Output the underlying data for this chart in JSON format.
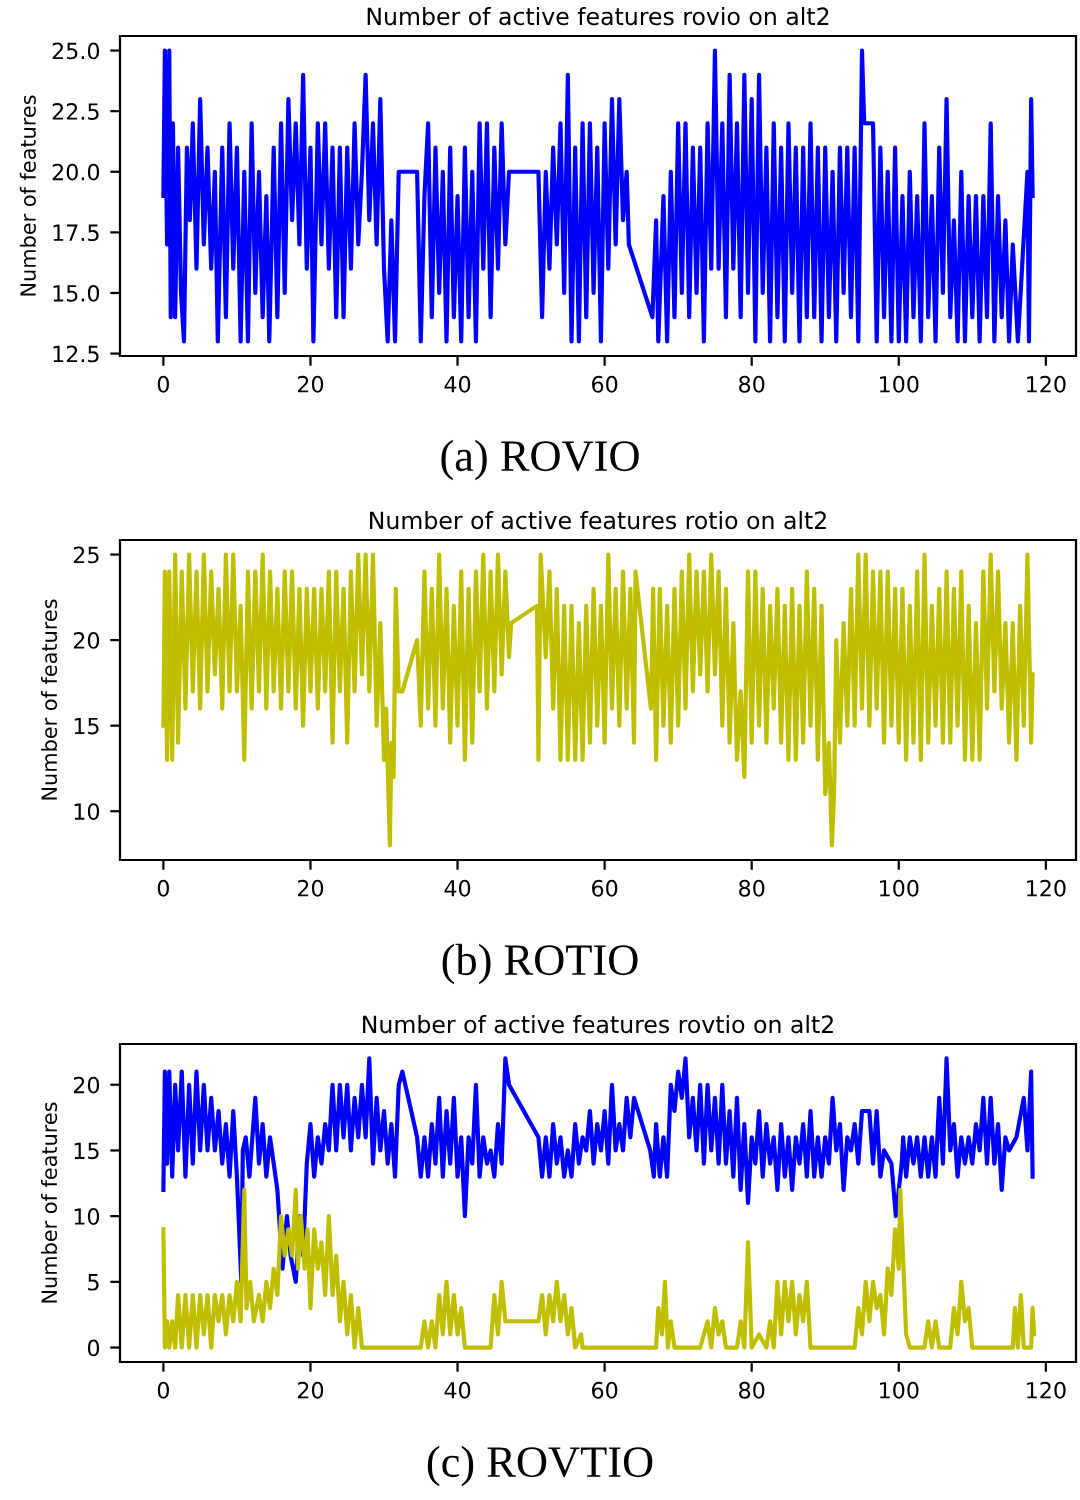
{
  "chart_data": [
    {
      "type": "line",
      "title": "Number of active features rovio on alt2",
      "ylabel": "Number of features",
      "annotations": [
        "(a) ROVIO"
      ],
      "xlim": [
        -5.9,
        124.1
      ],
      "xticks": [
        0,
        20,
        40,
        60,
        80,
        100,
        120
      ],
      "ylim": [
        12.4,
        25.6
      ],
      "yticks": [
        {
          "value": 12.5,
          "label": "12.5"
        },
        {
          "value": 15,
          "label": "15.0"
        },
        {
          "value": 17.5,
          "label": "17.5"
        },
        {
          "value": 20,
          "label": "20.0"
        },
        {
          "value": 22.5,
          "label": "22.5"
        },
        {
          "value": 25,
          "label": "25.0"
        }
      ],
      "grid": false,
      "series": [
        {
          "color": "#0000ff",
          "x": [
            0,
            0.2,
            0.5,
            0.8,
            1,
            1.3,
            1.6,
            2,
            2.4,
            2.8,
            3.2,
            3.6,
            4,
            4.5,
            5,
            5.5,
            6,
            6.5,
            7,
            7.4,
            8,
            8.5,
            9,
            9.5,
            10,
            10.5,
            11,
            11.5,
            12,
            12.5,
            13,
            13.5,
            14,
            14.4,
            15,
            15.5,
            16,
            16.5,
            17,
            17.5,
            18,
            18.5,
            19,
            19.5,
            20,
            20.4,
            21,
            21.5,
            22,
            22.5,
            23,
            23.5,
            24,
            24.5,
            25,
            25.5,
            26,
            26.5,
            27,
            27.5,
            28,
            28.5,
            29,
            29.5,
            30,
            30.5,
            31,
            31.5,
            32,
            34.5,
            35,
            35.5,
            36,
            36.5,
            37,
            37.5,
            38,
            38.5,
            39,
            39.5,
            40,
            40.5,
            41,
            41.5,
            42,
            42.5,
            43,
            43.5,
            44,
            44.5,
            45,
            45.5,
            46,
            46.5,
            47,
            51,
            51.5,
            52,
            52.5,
            53,
            53.5,
            54,
            54.5,
            55,
            55.5,
            56,
            56.5,
            57,
            57.5,
            58,
            58.5,
            59,
            59.5,
            60,
            60.5,
            61,
            61.5,
            62,
            62.5,
            63,
            63.3,
            66.5,
            67,
            67.3,
            68,
            68.5,
            69,
            69.5,
            70,
            70.5,
            71,
            71.5,
            72,
            72.5,
            73,
            73.5,
            74,
            74.5,
            75,
            75.5,
            76,
            76.5,
            77,
            77.5,
            78,
            78.5,
            79,
            79.5,
            80,
            80.5,
            81,
            81.5,
            82,
            82.5,
            83,
            83.5,
            84,
            84.5,
            85,
            85.5,
            86,
            86.5,
            87,
            87.5,
            88,
            88.5,
            89,
            89.5,
            90,
            90.5,
            91,
            91.5,
            92,
            92.5,
            93,
            93.5,
            94,
            94.5,
            95,
            95.3,
            96.5,
            97,
            97.5,
            98,
            98.5,
            99,
            99.5,
            100,
            100.5,
            101,
            101.5,
            102,
            102.5,
            103,
            103.5,
            104,
            104.5,
            105,
            105.5,
            106,
            106.5,
            107,
            107.5,
            108,
            108.5,
            109,
            109.5,
            110,
            110.5,
            111,
            111.5,
            112,
            112.5,
            113,
            113.5,
            114,
            114.5,
            115,
            115.5,
            116.2,
            117.5,
            117.7,
            118,
            118.2
          ],
          "values": [
            19,
            25,
            17,
            25,
            14,
            22,
            14,
            21,
            15,
            13,
            21,
            18,
            22,
            16,
            23,
            17,
            21,
            16,
            20,
            13,
            21,
            14,
            22,
            16,
            21,
            13,
            20,
            13,
            22,
            15,
            20,
            14,
            19,
            13,
            21,
            14,
            22,
            15,
            23,
            18,
            22,
            17,
            24,
            16,
            21,
            13,
            22,
            17,
            22,
            16,
            21,
            14,
            21,
            14,
            21,
            16,
            22,
            17,
            20,
            24,
            18,
            22,
            17,
            23,
            16,
            13,
            18,
            13,
            20,
            20,
            13,
            19,
            22,
            14,
            21,
            15,
            20,
            13,
            21,
            14,
            19,
            13,
            21,
            14,
            20,
            13,
            22,
            16,
            22,
            14,
            21,
            16,
            22,
            17,
            20,
            20,
            14,
            20,
            16,
            21,
            17,
            22,
            15,
            24,
            13,
            21,
            13,
            22,
            14,
            22,
            15,
            21,
            13,
            22,
            16,
            23,
            17,
            23,
            18,
            20,
            17,
            14,
            18,
            13,
            19,
            13,
            20,
            14,
            22,
            15,
            22,
            14,
            21,
            15,
            21,
            13,
            22,
            16,
            25,
            16,
            22,
            14,
            24,
            16,
            22,
            14,
            24,
            15,
            23,
            13,
            24,
            15,
            21,
            13,
            22,
            14,
            21,
            13,
            22,
            15,
            21,
            13,
            21,
            14,
            22,
            14,
            21,
            13,
            21,
            14,
            20,
            13,
            21,
            15,
            21,
            14,
            21,
            13,
            25,
            22,
            22,
            13,
            21,
            14,
            20,
            13,
            21,
            13,
            19,
            13,
            20,
            14,
            19,
            13,
            22,
            14,
            19,
            13,
            21,
            15,
            23,
            14,
            18,
            13,
            20,
            13,
            19,
            14,
            19,
            13,
            19,
            14,
            22,
            13,
            19,
            14,
            18,
            13,
            17,
            13,
            20,
            13,
            23,
            19
          ]
        }
      ]
    },
    {
      "type": "line",
      "title": "Number of active features rotio on alt2",
      "ylabel": "Number of features",
      "annotations": [
        "(b) ROTIO"
      ],
      "xlim": [
        -5.9,
        124.1
      ],
      "xticks": [
        0,
        20,
        40,
        60,
        80,
        100,
        120
      ],
      "ylim": [
        7.15,
        25.85
      ],
      "yticks": [
        10,
        15,
        20,
        25
      ],
      "grid": false,
      "series": [
        {
          "color": "#bfbf00",
          "x": [
            0,
            0.2,
            0.5,
            0.8,
            1.2,
            1.6,
            2,
            2.5,
            3,
            3.5,
            4,
            4.5,
            5,
            5.5,
            6,
            6.5,
            7,
            7.5,
            8,
            8.5,
            9,
            9.5,
            10,
            10.5,
            11,
            11.5,
            12,
            12.5,
            13,
            13.5,
            14,
            14.5,
            15,
            15.5,
            16,
            16.5,
            17,
            17.5,
            18,
            18.5,
            19,
            19.5,
            20,
            20.5,
            21,
            21.5,
            22,
            22.5,
            23,
            23.5,
            24,
            24.5,
            25,
            25.5,
            26,
            26.5,
            27,
            27.5,
            28,
            28.5,
            29,
            29.5,
            30,
            30.3,
            30.6,
            30.8,
            31,
            31.3,
            31.6,
            32,
            32.5,
            34.5,
            35,
            35.5,
            36,
            36.5,
            37,
            37.5,
            38,
            38.5,
            39,
            39.5,
            40,
            40.5,
            41,
            41.5,
            42,
            42.5,
            43,
            43.5,
            44,
            44.5,
            45,
            45.5,
            46,
            46.5,
            47,
            47.3,
            50.8,
            51,
            51.3,
            52,
            52.5,
            53,
            53.5,
            54,
            54.5,
            55,
            55.5,
            56,
            56.5,
            57,
            57.5,
            58,
            58.5,
            59,
            59.5,
            60,
            60.5,
            61,
            61.5,
            62,
            62.5,
            63,
            63.5,
            64,
            64.2,
            66.3,
            66.6,
            67,
            67.5,
            68,
            68.5,
            69,
            69.5,
            70,
            70.5,
            71,
            71.5,
            72,
            72.5,
            73,
            73.5,
            74,
            74.5,
            75,
            75.5,
            76,
            76.5,
            77,
            77.5,
            78,
            78.5,
            79,
            79.5,
            80,
            80.5,
            81,
            81.5,
            82,
            82.5,
            83,
            83.5,
            84,
            84.5,
            85,
            85.5,
            86,
            86.5,
            87,
            87.5,
            88,
            88.5,
            89,
            89.5,
            90,
            90.5,
            90.9,
            91.2,
            91.5,
            92,
            92.5,
            93,
            93.5,
            94,
            94.5,
            95,
            95.5,
            96,
            96.5,
            97,
            97.5,
            98,
            98.5,
            99,
            99.5,
            100,
            100.5,
            101,
            101.5,
            102,
            102.5,
            103,
            103.5,
            104,
            104.5,
            105,
            105.5,
            106,
            106.5,
            107,
            107.5,
            108,
            108.5,
            109,
            109.5,
            110,
            110.5,
            111,
            111.5,
            112,
            112.5,
            113,
            113.5,
            114,
            114.5,
            115,
            115.5,
            116,
            116.5,
            117,
            117.5,
            118,
            118.2
          ],
          "values": [
            15,
            24,
            13,
            24,
            13,
            25,
            14,
            24,
            16,
            25,
            17,
            24,
            16,
            25,
            17,
            24,
            18,
            23,
            16,
            25,
            17,
            25,
            17,
            22,
            13,
            24,
            16,
            24,
            17,
            25,
            16,
            24,
            17,
            23,
            16,
            24,
            17,
            24,
            16,
            23,
            15,
            23,
            17,
            23,
            16,
            23,
            17,
            24,
            14,
            24,
            17,
            23,
            14,
            24,
            17,
            25,
            18,
            25,
            17,
            25,
            15,
            21,
            13,
            16,
            11,
            8,
            14,
            12,
            23,
            17,
            17,
            20,
            15,
            24,
            16,
            23,
            15,
            25,
            16,
            23,
            14,
            22,
            15,
            24,
            13,
            23,
            14,
            24,
            17,
            25,
            16,
            24,
            17,
            25,
            18,
            24,
            19,
            21,
            22,
            13,
            25,
            19,
            24,
            16,
            23,
            13,
            22,
            13,
            22,
            13,
            21,
            13,
            22,
            14,
            23,
            15,
            22,
            14,
            25,
            16,
            23,
            15,
            24,
            16,
            23,
            14,
            24,
            16,
            23,
            13,
            23,
            15,
            22,
            14,
            23,
            15,
            24,
            16,
            25,
            17,
            24,
            18,
            24,
            17,
            25,
            18,
            24,
            15,
            23,
            14,
            21,
            13,
            17,
            12,
            24,
            14,
            24,
            15,
            23,
            14,
            22,
            16,
            23,
            14,
            22,
            13,
            23,
            13,
            22,
            14,
            24,
            15,
            23,
            13,
            22,
            11,
            14,
            8,
            11,
            20,
            14,
            21,
            15,
            23,
            15,
            25,
            16,
            25,
            15,
            24,
            16,
            24,
            14,
            24,
            15,
            23,
            14,
            23,
            13,
            22,
            14,
            24,
            13,
            25,
            14,
            22,
            15,
            23,
            14,
            24,
            14,
            23,
            15,
            24,
            13,
            22,
            13,
            21,
            13,
            24,
            16,
            25,
            17,
            24,
            16,
            21,
            14,
            21,
            13,
            22,
            15,
            25,
            14,
            18
          ]
        }
      ]
    },
    {
      "type": "line",
      "title": "Number of active features rovtio on alt2",
      "ylabel": "Number of features",
      "annotations": [
        "(c) ROVTIO"
      ],
      "xlim": [
        -5.9,
        124.1
      ],
      "xticks": [
        0,
        20,
        40,
        60,
        80,
        100,
        120
      ],
      "ylim": [
        -1.1,
        23.1
      ],
      "yticks": [
        0,
        5,
        10,
        15,
        20
      ],
      "grid": false,
      "series": [
        {
          "color": "#0000ff",
          "x": [
            0,
            0.2,
            0.5,
            0.8,
            1.2,
            1.6,
            2,
            2.5,
            3,
            3.5,
            4,
            4.5,
            5,
            5.5,
            6,
            6.5,
            7,
            7.5,
            8,
            8.5,
            9,
            9.5,
            10,
            10.6,
            10.8,
            11.2,
            11.7,
            12.5,
            13,
            13.5,
            14,
            14.5,
            15,
            15.5,
            16.2,
            16.8,
            17.3,
            18,
            18.6,
            19,
            19.5,
            20,
            20.5,
            21,
            21.5,
            22,
            22.5,
            23,
            23.5,
            24,
            24.5,
            25,
            25.5,
            26,
            26.5,
            27,
            27.5,
            28,
            28.5,
            29,
            29.5,
            30,
            30.5,
            31,
            31.5,
            32,
            32.5,
            34.5,
            35,
            35.5,
            36,
            36.5,
            37,
            37.5,
            38,
            38.5,
            39,
            39.5,
            40,
            40.5,
            41,
            41.5,
            42,
            42.5,
            43,
            43.5,
            44,
            44.5,
            45,
            45.5,
            46,
            46.5,
            47,
            51,
            51.5,
            52,
            52.5,
            53,
            53.5,
            54,
            54.5,
            55,
            55.5,
            56,
            56.5,
            57,
            57.5,
            58,
            58.5,
            59,
            59.5,
            60,
            60.5,
            61,
            61.5,
            62,
            62.5,
            63,
            63.5,
            64,
            66.2,
            66.7,
            67,
            67.5,
            68,
            68.5,
            69,
            69.5,
            70,
            70.5,
            71,
            71.5,
            72,
            72.5,
            73,
            73.5,
            74,
            74.5,
            75,
            75.5,
            76,
            76.5,
            77,
            77.5,
            78,
            78.5,
            79,
            79.5,
            80,
            80.5,
            81,
            81.5,
            82,
            82.5,
            83,
            83.5,
            84,
            84.5,
            85,
            85.5,
            86,
            86.5,
            87,
            87.5,
            88,
            88.5,
            89,
            89.5,
            90,
            90.5,
            91,
            91.5,
            92,
            92.5,
            93,
            93.5,
            94,
            94.5,
            95,
            96,
            96.5,
            97,
            97.5,
            98,
            99,
            99.6,
            100,
            100.4,
            100.6,
            101,
            101.5,
            102,
            102.5,
            103,
            103.5,
            104,
            104.5,
            105,
            105.5,
            106,
            106.5,
            107,
            107.5,
            108,
            108.5,
            109,
            109.5,
            110,
            110.5,
            111,
            111.5,
            112,
            112.5,
            113,
            113.5,
            114,
            114.5,
            115,
            116,
            117,
            117.5,
            118,
            118.2
          ],
          "values": [
            12,
            21,
            14,
            21,
            13,
            20,
            15,
            21,
            13,
            20,
            14,
            21,
            15,
            20,
            15,
            19,
            15,
            18,
            14,
            17,
            13,
            18,
            13,
            5,
            15,
            16,
            13,
            19,
            14,
            17,
            13,
            16,
            14,
            12,
            6,
            10,
            7,
            5,
            10,
            7,
            14,
            17,
            13,
            16,
            14,
            17,
            15,
            20,
            15,
            20,
            16,
            20,
            15,
            19,
            16,
            20,
            16,
            22,
            14,
            19,
            15,
            18,
            14,
            17,
            13,
            20,
            21,
            16,
            13,
            16,
            13,
            17,
            14,
            19,
            13,
            18,
            14,
            19,
            13,
            16,
            10,
            16,
            14,
            20,
            13,
            16,
            14,
            15,
            13,
            17,
            14,
            22,
            20,
            16,
            13,
            16,
            13,
            17,
            14,
            16,
            13,
            15,
            13,
            17,
            14,
            16,
            15,
            18,
            14,
            17,
            15,
            18,
            14,
            20,
            15,
            17,
            15,
            19,
            16,
            19,
            15,
            13,
            17,
            13,
            16,
            13,
            20,
            18,
            21,
            19,
            22,
            16,
            19,
            15,
            20,
            14,
            20,
            15,
            19,
            14,
            20,
            14,
            18,
            13,
            19,
            12,
            17,
            11,
            16,
            14,
            18,
            13,
            17,
            14,
            16,
            12,
            17,
            13,
            16,
            12,
            16,
            14,
            17,
            13,
            18,
            13,
            16,
            13,
            16,
            14,
            19,
            15,
            17,
            12,
            16,
            15,
            17,
            14,
            18,
            18,
            14,
            18,
            13,
            15,
            14,
            10,
            12,
            14,
            16,
            13,
            16,
            14,
            16,
            13,
            16,
            13,
            16,
            13,
            19,
            14,
            22,
            15,
            17,
            13,
            16,
            14,
            16,
            14,
            17,
            15,
            19,
            14,
            19,
            14,
            17,
            12,
            16,
            15,
            16,
            19,
            15,
            21,
            13
          ]
        },
        {
          "color": "#bfbf00",
          "x": [
            0,
            0.2,
            0.5,
            0.8,
            1.2,
            1.6,
            2,
            2.5,
            3,
            3.5,
            4,
            4.5,
            5,
            5.5,
            6,
            6.5,
            7,
            7.5,
            8,
            8.5,
            9,
            9.5,
            10,
            10.5,
            11,
            11.3,
            11.8,
            12.3,
            13,
            13.5,
            14,
            14.5,
            15,
            15.5,
            16,
            16.5,
            17,
            17.5,
            18,
            18.3,
            18.7,
            19.2,
            19.6,
            20,
            20.5,
            21,
            21.5,
            22,
            22.5,
            23,
            23.5,
            24,
            24.5,
            25,
            25.5,
            26,
            26.5,
            27,
            35,
            35.5,
            36,
            36.5,
            37,
            37.5,
            38,
            38.5,
            39,
            39.5,
            40,
            40.5,
            41,
            44.5,
            45,
            45.5,
            46,
            46.5,
            47,
            51,
            51.5,
            52,
            52.5,
            53,
            53.5,
            54,
            54.5,
            55,
            55.5,
            56,
            56.8,
            57,
            67,
            67.3,
            67.8,
            68.2,
            68.6,
            69,
            69.5,
            73,
            73.5,
            74,
            74.5,
            75,
            75.5,
            76,
            76.5,
            78,
            78.5,
            79,
            79.5,
            80,
            81,
            82,
            82.5,
            83,
            83.5,
            84,
            84.5,
            85,
            85.5,
            86,
            86.5,
            87,
            87.5,
            88,
            94,
            94.5,
            95,
            95.5,
            96,
            96.5,
            97,
            97.5,
            98,
            98.5,
            99,
            99.5,
            100,
            100.2,
            100.5,
            101,
            101.5,
            103.5,
            104,
            104.5,
            105,
            105.5,
            107,
            107.5,
            108,
            108.5,
            109,
            109.5,
            110,
            115.5,
            115.8,
            116.2,
            116.6,
            117,
            118,
            118.2,
            118.4
          ],
          "values": [
            9,
            0,
            2,
            0,
            2,
            0,
            4,
            0,
            4,
            0,
            4,
            0,
            4,
            1,
            4,
            0,
            4,
            2,
            4,
            1,
            4,
            2,
            5,
            2,
            12,
            3,
            5,
            2,
            4,
            2,
            5,
            3,
            6,
            4,
            10,
            7,
            9,
            7,
            12,
            6,
            10,
            6,
            9,
            3,
            9,
            6,
            8,
            4,
            10,
            4,
            7,
            2,
            5,
            1,
            4,
            0,
            3,
            0,
            0,
            2,
            0,
            2,
            0,
            4,
            1,
            5,
            1,
            4,
            1,
            3,
            0,
            0,
            4,
            1,
            5,
            2,
            2,
            2,
            4,
            1,
            4,
            2,
            5,
            2,
            4,
            1,
            3,
            0,
            1,
            0,
            0,
            3,
            1,
            5,
            0,
            2,
            0,
            0,
            1,
            2,
            0,
            3,
            1,
            2,
            0,
            0,
            2,
            0,
            8,
            0,
            1,
            0,
            2,
            0,
            5,
            1,
            5,
            2,
            5,
            1,
            4,
            2,
            5,
            0,
            0,
            3,
            1,
            5,
            2,
            5,
            3,
            4,
            1,
            6,
            4,
            9,
            6,
            12,
            8,
            1,
            0,
            0,
            2,
            0,
            2,
            0,
            0,
            3,
            1,
            5,
            2,
            3,
            0,
            0,
            3,
            0,
            4,
            0,
            0,
            3,
            1
          ]
        }
      ]
    }
  ]
}
